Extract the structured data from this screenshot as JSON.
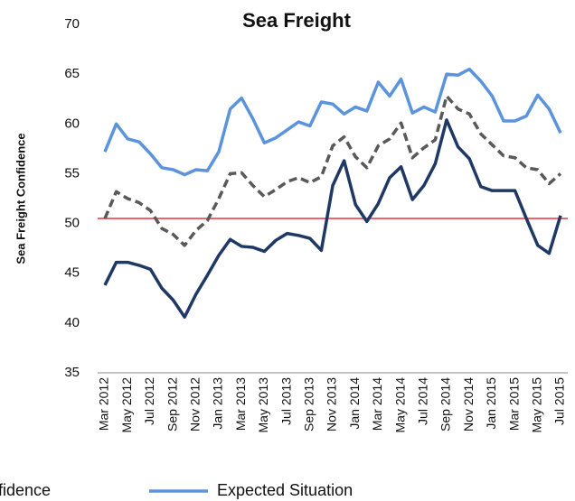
{
  "chart_data": {
    "type": "line",
    "title": "Sea Freight",
    "y_label": "Sea Freight Confidence",
    "categories": [
      "Mar 2012",
      null,
      "May 2012",
      null,
      "Jul 2012",
      null,
      "Sep 2012",
      null,
      "Nov 2012",
      null,
      "Jan 2013",
      null,
      "Mar 2013",
      null,
      "May 2013",
      null,
      "Jul 2013",
      null,
      "Sep 2013",
      null,
      "Nov 2013",
      null,
      "Jan 2014",
      null,
      "Mar 2014",
      null,
      "May 2014",
      null,
      "Jul 2014",
      null,
      "Sep 2014",
      null,
      "Nov 2014",
      null,
      "Jan 2015",
      null,
      "Mar 2015",
      null,
      "May 2015",
      null,
      "Jul 2015"
    ],
    "series": [
      {
        "name": "Confidence",
        "color": "#595959",
        "dash": true,
        "values": [
          50.5,
          53.2,
          52.5,
          52.1,
          51.3,
          49.5,
          48.9,
          47.8,
          49.3,
          50.3,
          52.5,
          55,
          55.1,
          53.8,
          52.7,
          53.4,
          54.2,
          54.6,
          54.1,
          54.7,
          57.8,
          58.7,
          56.7,
          55.6,
          57.8,
          58.5,
          60.1,
          56.6,
          57.6,
          58.4,
          62.8,
          61.5,
          61,
          59,
          57.9,
          56.8,
          56.6,
          55.6,
          55.4,
          54,
          55
        ]
      },
      {
        "name": "Expected Situation",
        "color": "#5b93dc",
        "dash": false,
        "values": [
          57.2,
          60,
          58.5,
          58.2,
          57,
          55.6,
          55.4,
          54.9,
          55.4,
          55.3,
          57.2,
          61.5,
          62.6,
          60.5,
          58.1,
          58.6,
          59.4,
          60.2,
          59.8,
          62.2,
          62,
          61,
          61.7,
          61.3,
          64.2,
          62.8,
          64.5,
          61.1,
          61.7,
          61.2,
          65,
          64.9,
          65.5,
          64.3,
          62.8,
          60.3,
          60.3,
          60.8,
          62.9,
          61.5,
          59.1
        ]
      },
      {
        "color": "#1f3864",
        "dash": false,
        "values": [
          43.8,
          46.1,
          46.1,
          45.8,
          45.4,
          43.5,
          42.3,
          40.6,
          42.9,
          44.8,
          46.8,
          48.4,
          47.7,
          47.6,
          47.2,
          48.3,
          49,
          48.8,
          48.5,
          47.3,
          53.8,
          56.3,
          51.9,
          50.2,
          52,
          54.6,
          55.7,
          52.4,
          53.8,
          56,
          60.4,
          57.7,
          56.5,
          53.7,
          53.3,
          53.3,
          53.3,
          50.5,
          47.8,
          47,
          50.8
        ]
      }
    ],
    "reference_line": {
      "value": 50.5,
      "color": "#e8343a"
    },
    "ylim": [
      35,
      70
    ],
    "yticks": [
      35,
      40,
      45,
      50,
      55,
      60,
      65,
      70
    ],
    "grid": false
  }
}
